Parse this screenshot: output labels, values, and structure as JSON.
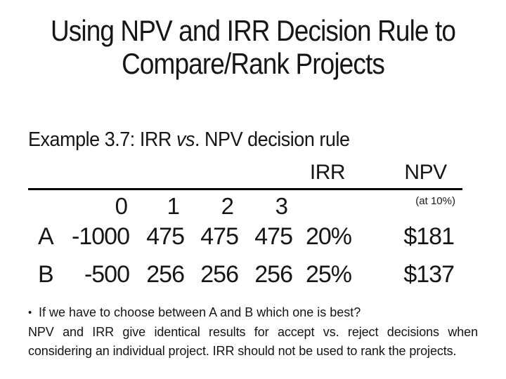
{
  "slide": {
    "title_line1": "Using NPV and IRR Decision Rule to",
    "title_line2": "Compare/Rank Projects"
  },
  "example": {
    "prefix": "Example 3.7: IRR ",
    "italic": "vs",
    "suffix": ". NPV decision rule"
  },
  "table": {
    "headers": {
      "irr": "IRR",
      "npv": "NPV",
      "npv_note": "(at 10%)"
    },
    "periods": [
      "0",
      "1",
      "2",
      "3"
    ],
    "rows": [
      {
        "label": "A",
        "cf0": "-1000",
        "cf1": "475",
        "cf2": "475",
        "cf3": "475",
        "irr": "20%",
        "npv": "$181"
      },
      {
        "label": "B",
        "cf0": "-500",
        "cf1": "256",
        "cf2": "256",
        "cf3": "256",
        "irr": "25%",
        "npv": "$137"
      }
    ]
  },
  "notes": {
    "bullet_glyph": "•",
    "bullet": "If we have to choose between A and B which one is best?",
    "paragraph": "NPV and IRR give identical results for accept vs. reject decisions when considering an individual project. IRR should not be used to rank the projects."
  },
  "colors": {
    "background": "#ffffff",
    "text": "#161616",
    "rule": "#000000"
  }
}
